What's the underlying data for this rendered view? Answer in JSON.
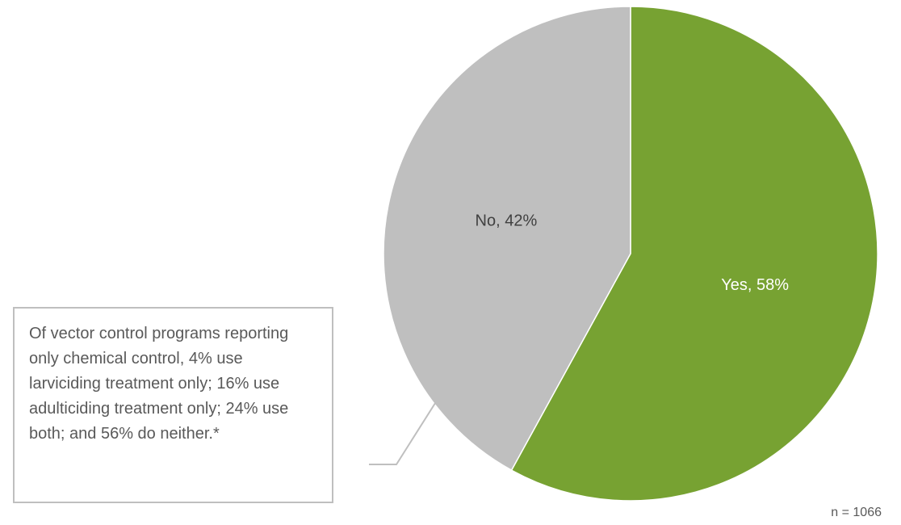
{
  "chart_data": {
    "type": "pie",
    "slices": [
      {
        "label": "Yes",
        "value": 58,
        "display": "Yes, 58%",
        "color": "#77a232",
        "label_color": "#ffffff"
      },
      {
        "label": "No",
        "value": 42,
        "display": "No, 42%",
        "color": "#bfbfbf",
        "label_color": "#404040"
      }
    ],
    "start_angle_deg": 0,
    "direction": "clockwise",
    "slice_border_color": "#ffffff",
    "leader_line_color": "#bfbfbf"
  },
  "annotation": {
    "text": "Of vector control programs reporting only chemical control, 4% use larviciding treatment only; 16% use adulticiding treatment only; 24% use both; and 56% do neither.*"
  },
  "footnote": {
    "sample_size": "n = 1066"
  }
}
